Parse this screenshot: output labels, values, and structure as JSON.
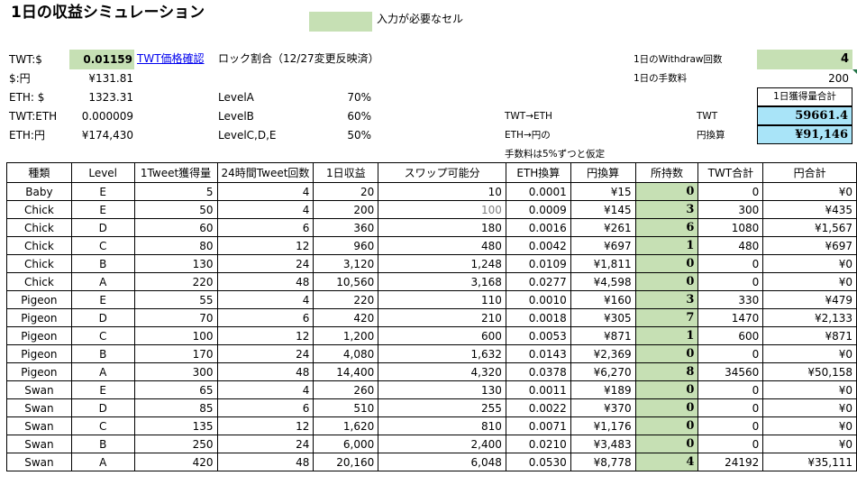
{
  "title": "1日の収益シミュレーション",
  "legend_label": "入力が必要なセル",
  "rates": {
    "twt_usd_label": "TWT:$",
    "twt_usd_value": "0.01159",
    "price_link": "TWT価格確認",
    "usd_jpy_label": "$:円",
    "usd_jpy_value": "¥131.81",
    "eth_usd_label": "ETH: $",
    "eth_usd_value": "1323.31",
    "twt_eth_label": "TWT:ETH",
    "twt_eth_value": "0.000009",
    "eth_jpy_label": "ETH:円",
    "eth_jpy_value": "¥174,430"
  },
  "lock": {
    "heading": "ロック割合（12/27変更反映済）",
    "levels": [
      {
        "label": "LevelA",
        "value": "70%"
      },
      {
        "label": "LevelB",
        "value": "60%"
      },
      {
        "label": "LevelC,D,E",
        "value": "50%"
      }
    ]
  },
  "swap": {
    "twt_eth": "TWT→ETH",
    "eth_jpy": "ETH→円の",
    "note": "手数料は5%ずつと仮定"
  },
  "withdraw": {
    "count_label": "1日のWithdraw回数",
    "count_value": "4",
    "fee_label": "1日の手数料",
    "fee_value": "200",
    "total_header": "1日獲得量合計",
    "twt_label": "TWT",
    "twt_value": "59661.4",
    "jpy_label": "円換算",
    "jpy_value": "¥91,146"
  },
  "table": {
    "headers": [
      "種類",
      "Level",
      "1Tweet獲得量",
      "24時間Tweet回数",
      "1日収益",
      "スワップ可能分",
      "ETH換算",
      "円換算",
      "所持数",
      "TWT合計",
      "円合計"
    ],
    "rows": [
      [
        "Baby",
        "E",
        "5",
        "4",
        "20",
        "10",
        "0.0001",
        "¥15",
        "0",
        "0",
        "¥0"
      ],
      [
        "Chick",
        "E",
        "50",
        "4",
        "200",
        "100",
        "0.0009",
        "¥145",
        "3",
        "300",
        "¥435"
      ],
      [
        "Chick",
        "D",
        "60",
        "6",
        "360",
        "180",
        "0.0016",
        "¥261",
        "6",
        "1080",
        "¥1,567"
      ],
      [
        "Chick",
        "C",
        "80",
        "12",
        "960",
        "480",
        "0.0042",
        "¥697",
        "1",
        "480",
        "¥697"
      ],
      [
        "Chick",
        "B",
        "130",
        "24",
        "3,120",
        "1,248",
        "0.0109",
        "¥1,811",
        "0",
        "0",
        "¥0"
      ],
      [
        "Chick",
        "A",
        "220",
        "48",
        "10,560",
        "3,168",
        "0.0277",
        "¥4,598",
        "0",
        "0",
        "¥0"
      ],
      [
        "Pigeon",
        "E",
        "55",
        "4",
        "220",
        "110",
        "0.0010",
        "¥160",
        "3",
        "330",
        "¥479"
      ],
      [
        "Pigeon",
        "D",
        "70",
        "6",
        "420",
        "210",
        "0.0018",
        "¥305",
        "7",
        "1470",
        "¥2,133"
      ],
      [
        "Pigeon",
        "C",
        "100",
        "12",
        "1,200",
        "600",
        "0.0053",
        "¥871",
        "1",
        "600",
        "¥871"
      ],
      [
        "Pigeon",
        "B",
        "170",
        "24",
        "4,080",
        "1,632",
        "0.0143",
        "¥2,369",
        "0",
        "0",
        "¥0"
      ],
      [
        "Pigeon",
        "A",
        "300",
        "48",
        "14,400",
        "4,320",
        "0.0378",
        "¥6,270",
        "8",
        "34560",
        "¥50,158"
      ],
      [
        "Swan",
        "E",
        "65",
        "4",
        "260",
        "130",
        "0.0011",
        "¥189",
        "0",
        "0",
        "¥0"
      ],
      [
        "Swan",
        "D",
        "85",
        "6",
        "510",
        "255",
        "0.0022",
        "¥370",
        "0",
        "0",
        "¥0"
      ],
      [
        "Swan",
        "C",
        "135",
        "12",
        "1,620",
        "810",
        "0.0071",
        "¥1,176",
        "0",
        "0",
        "¥0"
      ],
      [
        "Swan",
        "B",
        "250",
        "24",
        "6,000",
        "2,400",
        "0.0210",
        "¥3,483",
        "0",
        "0",
        "¥0"
      ],
      [
        "Swan",
        "A",
        "420",
        "48",
        "20,160",
        "6,048",
        "0.0530",
        "¥8,778",
        "4",
        "24192",
        "¥35,111"
      ]
    ]
  },
  "colors": {
    "input_green": "#c6e0b4",
    "output_blue": "#a9e4f8",
    "link": "#0000ee"
  }
}
